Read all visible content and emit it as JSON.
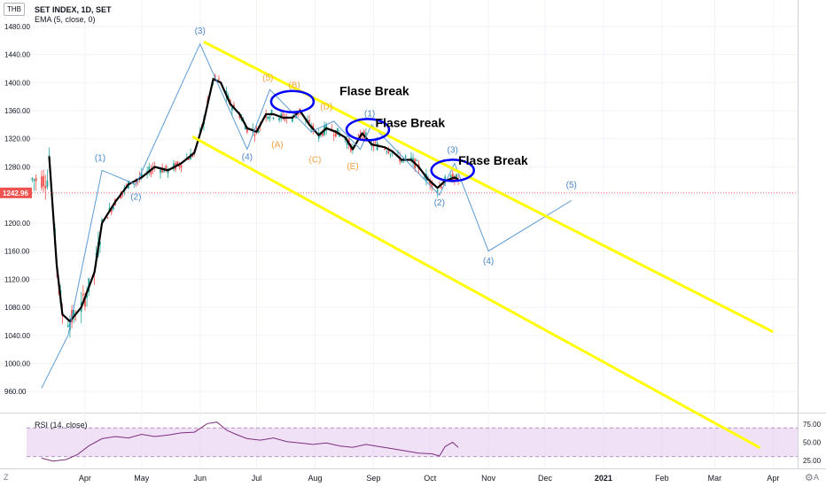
{
  "header": {
    "currency": "THB",
    "symbol": "SET INDEX, 1D, SET",
    "indicator": "EMA (5, close, 0)"
  },
  "rsi_label": "RSI (14, close)",
  "last_price": "1242.96",
  "footer": {
    "logo": "Z",
    "auto": "A"
  },
  "colors": {
    "up": "#26a69a",
    "down": "#ef5350",
    "ema": "#000000",
    "channel": "#ffff00",
    "wave": "#5b9bd5",
    "wave_label": "#4a86c5",
    "abc_label": "#f0a040",
    "ellipse": "#0000ff",
    "rsi": "#7e2f7e",
    "rsi_band": "#e6c8f0",
    "last_price": "#ef5350"
  },
  "chart_data": [
    {
      "type": "line",
      "subtype": "candlestick",
      "title": "SET INDEX, 1D, SET",
      "ylabel": "THB",
      "ylim": [
        930,
        1500
      ],
      "y_ticks": [
        "1480.00",
        "1440.00",
        "1400.00",
        "1360.00",
        "1320.00",
        "1280.00",
        "1240.00",
        "1200.00",
        "1160.00",
        "1120.00",
        "1080.00",
        "1040.00",
        "1000.00",
        "960.00"
      ],
      "x_tick_labels": [
        "Apr",
        "May",
        "Jun",
        "Jul",
        "Aug",
        "Sep",
        "Oct",
        "Nov",
        "Dec",
        "2021",
        "Feb",
        "Mar",
        "Apr"
      ],
      "grid": true,
      "last_price": 1242.96,
      "ema_series": {
        "name": "EMA (5, close, 0)",
        "points": [
          [
            "2020-03-13",
            1295
          ],
          [
            "2020-03-17",
            1140
          ],
          [
            "2020-03-20",
            1070
          ],
          [
            "2020-03-24",
            1060
          ],
          [
            "2020-03-30",
            1080
          ],
          [
            "2020-04-06",
            1130
          ],
          [
            "2020-04-10",
            1200
          ],
          [
            "2020-04-17",
            1230
          ],
          [
            "2020-04-24",
            1255
          ],
          [
            "2020-05-01",
            1265
          ],
          [
            "2020-05-08",
            1280
          ],
          [
            "2020-05-15",
            1275
          ],
          [
            "2020-05-22",
            1285
          ],
          [
            "2020-05-29",
            1300
          ],
          [
            "2020-06-03",
            1345
          ],
          [
            "2020-06-08",
            1405
          ],
          [
            "2020-06-12",
            1400
          ],
          [
            "2020-06-17",
            1370
          ],
          [
            "2020-06-22",
            1355
          ],
          [
            "2020-06-26",
            1335
          ],
          [
            "2020-07-01",
            1330
          ],
          [
            "2020-07-06",
            1355
          ],
          [
            "2020-07-10",
            1355
          ],
          [
            "2020-07-15",
            1350
          ],
          [
            "2020-07-20",
            1350
          ],
          [
            "2020-07-24",
            1360
          ],
          [
            "2020-07-29",
            1340
          ],
          [
            "2020-08-03",
            1325
          ],
          [
            "2020-08-07",
            1335
          ],
          [
            "2020-08-12",
            1330
          ],
          [
            "2020-08-17",
            1322
          ],
          [
            "2020-08-21",
            1305
          ],
          [
            "2020-08-26",
            1328
          ],
          [
            "2020-08-31",
            1312
          ],
          [
            "2020-09-07",
            1308
          ],
          [
            "2020-09-11",
            1302
          ],
          [
            "2020-09-16",
            1290
          ],
          [
            "2020-09-21",
            1290
          ],
          [
            "2020-09-25",
            1280
          ],
          [
            "2020-09-30",
            1262
          ],
          [
            "2020-10-05",
            1250
          ],
          [
            "2020-10-09",
            1260
          ],
          [
            "2020-10-14",
            1265
          ],
          [
            "2020-10-16",
            1262
          ]
        ]
      },
      "wave_path": {
        "name": "Elliott wave projection",
        "points": [
          [
            "2020-03-09",
            965
          ],
          [
            "2020-03-23",
            1040
          ],
          [
            "2020-04-10",
            1275
          ],
          [
            "2020-04-28",
            1255
          ],
          [
            "2020-06-01",
            1455
          ],
          [
            "2020-06-26",
            1305
          ],
          [
            "2020-07-08",
            1390
          ],
          [
            "2020-07-30",
            1330
          ],
          [
            "2020-08-11",
            1345
          ],
          [
            "2020-08-25",
            1305
          ],
          [
            "2020-08-31",
            1340
          ],
          [
            "2020-10-06",
            1240
          ],
          [
            "2020-10-14",
            1285
          ],
          [
            "2020-11-01",
            1160
          ],
          [
            "2020-12-15",
            1232
          ]
        ]
      },
      "channel": [
        {
          "name": "upper channel",
          "points": [
            [
              "2020-06-03",
              1458
            ],
            [
              "2021-04-01",
              1045
            ]
          ]
        },
        {
          "name": "lower channel",
          "points": [
            [
              "2020-05-28",
              1323
            ],
            [
              "2021-03-25",
              880
            ]
          ]
        }
      ],
      "labels": [
        {
          "text": "(3)",
          "x": "2020-06-01",
          "y": 1470,
          "kind": "wave"
        },
        {
          "text": "(1)",
          "x": "2020-04-09",
          "y": 1289,
          "kind": "wave"
        },
        {
          "text": "(2)",
          "x": "2020-04-28",
          "y": 1233,
          "kind": "wave"
        },
        {
          "text": "(5)",
          "x": "2020-07-07",
          "y": 1403,
          "kind": "abc"
        },
        {
          "text": "(4)",
          "x": "2020-06-26",
          "y": 1290,
          "kind": "wave"
        },
        {
          "text": "(A)",
          "x": "2020-07-12",
          "y": 1308,
          "kind": "abc"
        },
        {
          "text": "(B)",
          "x": "2020-07-21",
          "y": 1392,
          "kind": "abc"
        },
        {
          "text": "(C)",
          "x": "2020-08-01",
          "y": 1286,
          "kind": "abc"
        },
        {
          "text": "(D)",
          "x": "2020-08-07",
          "y": 1362,
          "kind": "abc"
        },
        {
          "text": "(E)",
          "x": "2020-08-21",
          "y": 1277,
          "kind": "abc"
        },
        {
          "text": "(1)",
          "x": "2020-08-30",
          "y": 1352,
          "kind": "wave"
        },
        {
          "text": "(3)",
          "x": "2020-10-13",
          "y": 1300,
          "kind": "wave"
        },
        {
          "text": "(2)",
          "x": "2020-10-06",
          "y": 1225,
          "kind": "wave"
        },
        {
          "text": "(4)",
          "x": "2020-11-01",
          "y": 1142,
          "kind": "wave"
        },
        {
          "text": "(5)",
          "x": "2020-12-15",
          "y": 1250,
          "kind": "wave"
        }
      ],
      "annotations": [
        {
          "text": "Flase Break",
          "x": "2020-08-14",
          "y": 1382
        },
        {
          "text": "Flase Break",
          "x": "2020-09-02",
          "y": 1337
        },
        {
          "text": "Flase Break",
          "x": "2020-10-16",
          "y": 1283
        }
      ],
      "ellipses": [
        {
          "x": "2020-07-20",
          "y": 1373
        },
        {
          "x": "2020-08-29",
          "y": 1333
        },
        {
          "x": "2020-10-13",
          "y": 1275
        }
      ]
    },
    {
      "type": "line",
      "title": "RSI (14, close)",
      "ylim": [
        15,
        85
      ],
      "y_ticks": [
        "75.00",
        "50.00",
        "25.00"
      ],
      "band": [
        30,
        70
      ],
      "series": [
        {
          "name": "RSI (14, close)",
          "points": [
            [
              "2020-03-09",
              28
            ],
            [
              "2020-03-15",
              24
            ],
            [
              "2020-03-22",
              26
            ],
            [
              "2020-03-28",
              33
            ],
            [
              "2020-04-03",
              45
            ],
            [
              "2020-04-10",
              55
            ],
            [
              "2020-04-17",
              58
            ],
            [
              "2020-04-24",
              56
            ],
            [
              "2020-05-01",
              61
            ],
            [
              "2020-05-08",
              58
            ],
            [
              "2020-05-15",
              60
            ],
            [
              "2020-05-22",
              63
            ],
            [
              "2020-05-29",
              64
            ],
            [
              "2020-06-05",
              76
            ],
            [
              "2020-06-10",
              78
            ],
            [
              "2020-06-15",
              67
            ],
            [
              "2020-06-20",
              61
            ],
            [
              "2020-06-26",
              55
            ],
            [
              "2020-07-03",
              53
            ],
            [
              "2020-07-10",
              56
            ],
            [
              "2020-07-17",
              51
            ],
            [
              "2020-07-24",
              49
            ],
            [
              "2020-07-31",
              47
            ],
            [
              "2020-08-07",
              49
            ],
            [
              "2020-08-14",
              45
            ],
            [
              "2020-08-21",
              43
            ],
            [
              "2020-08-28",
              47
            ],
            [
              "2020-09-04",
              44
            ],
            [
              "2020-09-11",
              41
            ],
            [
              "2020-09-18",
              38
            ],
            [
              "2020-09-25",
              35
            ],
            [
              "2020-10-02",
              34
            ],
            [
              "2020-10-06",
              31
            ],
            [
              "2020-10-09",
              44
            ],
            [
              "2020-10-13",
              50
            ],
            [
              "2020-10-16",
              43
            ]
          ]
        }
      ]
    }
  ]
}
